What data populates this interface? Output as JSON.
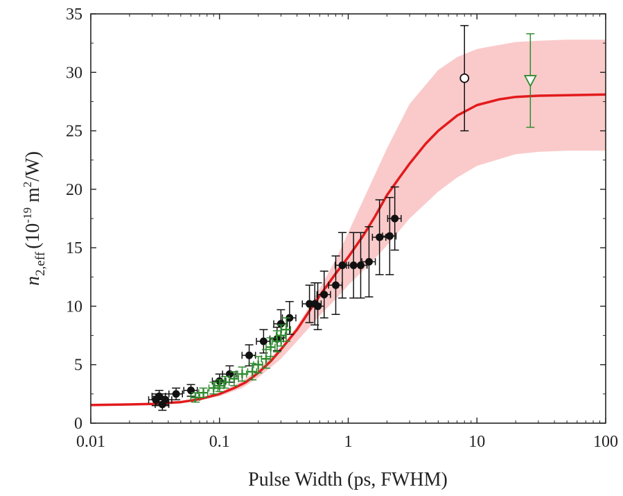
{
  "chart_data": {
    "type": "scatter",
    "title": "",
    "xlabel": "Pulse Width (ps, FWHM)",
    "ylabel": {
      "symbol": "n",
      "subscript": "2,eff",
      "unit_prefix": "(10",
      "unit_exp1": "-19",
      "unit_mid": " m",
      "unit_exp2": "2",
      "unit_suffix": "/W)"
    },
    "xscale": "log",
    "xlim": [
      0.01,
      100
    ],
    "ylim": [
      0,
      35
    ],
    "xticks": [
      0.01,
      0.1,
      1,
      10,
      100
    ],
    "xtick_labels": [
      "0.01",
      "0.1",
      "1",
      "10",
      "100"
    ],
    "yticks": [
      0,
      5,
      10,
      15,
      20,
      25,
      30,
      35
    ],
    "ytick_labels": [
      "0",
      "5",
      "10",
      "15",
      "20",
      "25",
      "30",
      "35"
    ],
    "grid": false,
    "legend": "none",
    "colors": {
      "fit_line": "#e31a1c",
      "confidence_band": "#f8b4b4",
      "black_series": "#111111",
      "green_series": "#2e8b2e"
    },
    "series": [
      {
        "kind": "band",
        "x": [
          0.01,
          0.03,
          0.06,
          0.1,
          0.15,
          0.2,
          0.3,
          0.4,
          0.5,
          0.6,
          0.8,
          1,
          1.5,
          2,
          3,
          5,
          7,
          10,
          20,
          30,
          50,
          100
        ],
        "upper": [
          1.6,
          1.7,
          2.0,
          2.6,
          3.6,
          4.6,
          6.5,
          8.3,
          10.0,
          11.5,
          14.0,
          16.3,
          20.5,
          23.5,
          27.3,
          30.2,
          31.3,
          32.0,
          32.6,
          32.7,
          32.8,
          32.8
        ],
        "lower": [
          1.5,
          1.6,
          1.8,
          2.3,
          3.0,
          3.9,
          5.5,
          7.0,
          8.2,
          9.2,
          10.6,
          11.8,
          13.7,
          15.2,
          17.5,
          19.8,
          21.0,
          22.0,
          23.0,
          23.2,
          23.3,
          23.3
        ]
      },
      {
        "kind": "line",
        "x": [
          0.01,
          0.02,
          0.03,
          0.05,
          0.07,
          0.1,
          0.13,
          0.16,
          0.2,
          0.25,
          0.3,
          0.4,
          0.5,
          0.6,
          0.8,
          1,
          1.3,
          1.6,
          2,
          2.5,
          3,
          4,
          5,
          7,
          10,
          15,
          20,
          30,
          50,
          100
        ],
        "y": [
          1.55,
          1.6,
          1.65,
          1.8,
          2.05,
          2.5,
          3.0,
          3.5,
          4.3,
          5.3,
          6.3,
          8.0,
          9.6,
          10.9,
          12.8,
          14.2,
          16.0,
          17.6,
          19.5,
          21.0,
          22.2,
          23.9,
          25.0,
          26.3,
          27.2,
          27.7,
          27.9,
          28.0,
          28.05,
          28.1
        ]
      },
      {
        "kind": "points",
        "marker": "filled-circle",
        "x": [
          0.032,
          0.034,
          0.036,
          0.038,
          0.046,
          0.06,
          0.1,
          0.12,
          0.17,
          0.22,
          0.28,
          0.3,
          0.35,
          0.5,
          0.55,
          0.58,
          0.65,
          0.8,
          0.9,
          1.1,
          1.25,
          1.45,
          1.75,
          2.1,
          2.3
        ],
        "y": [
          2.0,
          2.3,
          1.6,
          2.0,
          2.5,
          2.8,
          3.6,
          4.2,
          5.8,
          7.0,
          7.2,
          8.5,
          9.0,
          10.2,
          10.2,
          10.0,
          11.0,
          11.8,
          13.5,
          13.5,
          13.5,
          13.8,
          15.9,
          16.0,
          17.5
        ],
        "yerr": [
          0.5,
          0.5,
          0.5,
          0.5,
          0.5,
          0.5,
          0.6,
          0.7,
          0.9,
          1.0,
          1.0,
          1.2,
          1.4,
          1.6,
          1.8,
          2.0,
          2.0,
          2.5,
          2.8,
          2.8,
          2.8,
          3.0,
          3.2,
          3.3,
          2.7
        ],
        "xerr_frac": 0.12
      },
      {
        "kind": "points",
        "marker": "open-circle",
        "x": [
          8
        ],
        "y": [
          29.5
        ],
        "yerr": [
          4.5
        ]
      },
      {
        "kind": "points",
        "marker": "green-plus",
        "x": [
          0.065,
          0.075,
          0.09,
          0.1,
          0.11,
          0.13,
          0.15,
          0.18,
          0.2,
          0.23,
          0.25,
          0.28,
          0.3,
          0.33
        ],
        "y": [
          2.2,
          2.6,
          3.0,
          3.2,
          3.5,
          3.8,
          4.2,
          4.4,
          5.0,
          5.5,
          6.5,
          7.0,
          7.5,
          8.0
        ],
        "yerr": [
          0.4,
          0.4,
          0.5,
          0.5,
          0.5,
          0.6,
          0.6,
          0.7,
          0.7,
          0.8,
          0.8,
          0.9,
          0.9,
          1.0
        ],
        "xerr_frac": 0.08
      },
      {
        "kind": "points",
        "marker": "open-triangle-down",
        "x": [
          26
        ],
        "y": [
          29.3
        ],
        "yerr": [
          4.0
        ]
      }
    ]
  }
}
